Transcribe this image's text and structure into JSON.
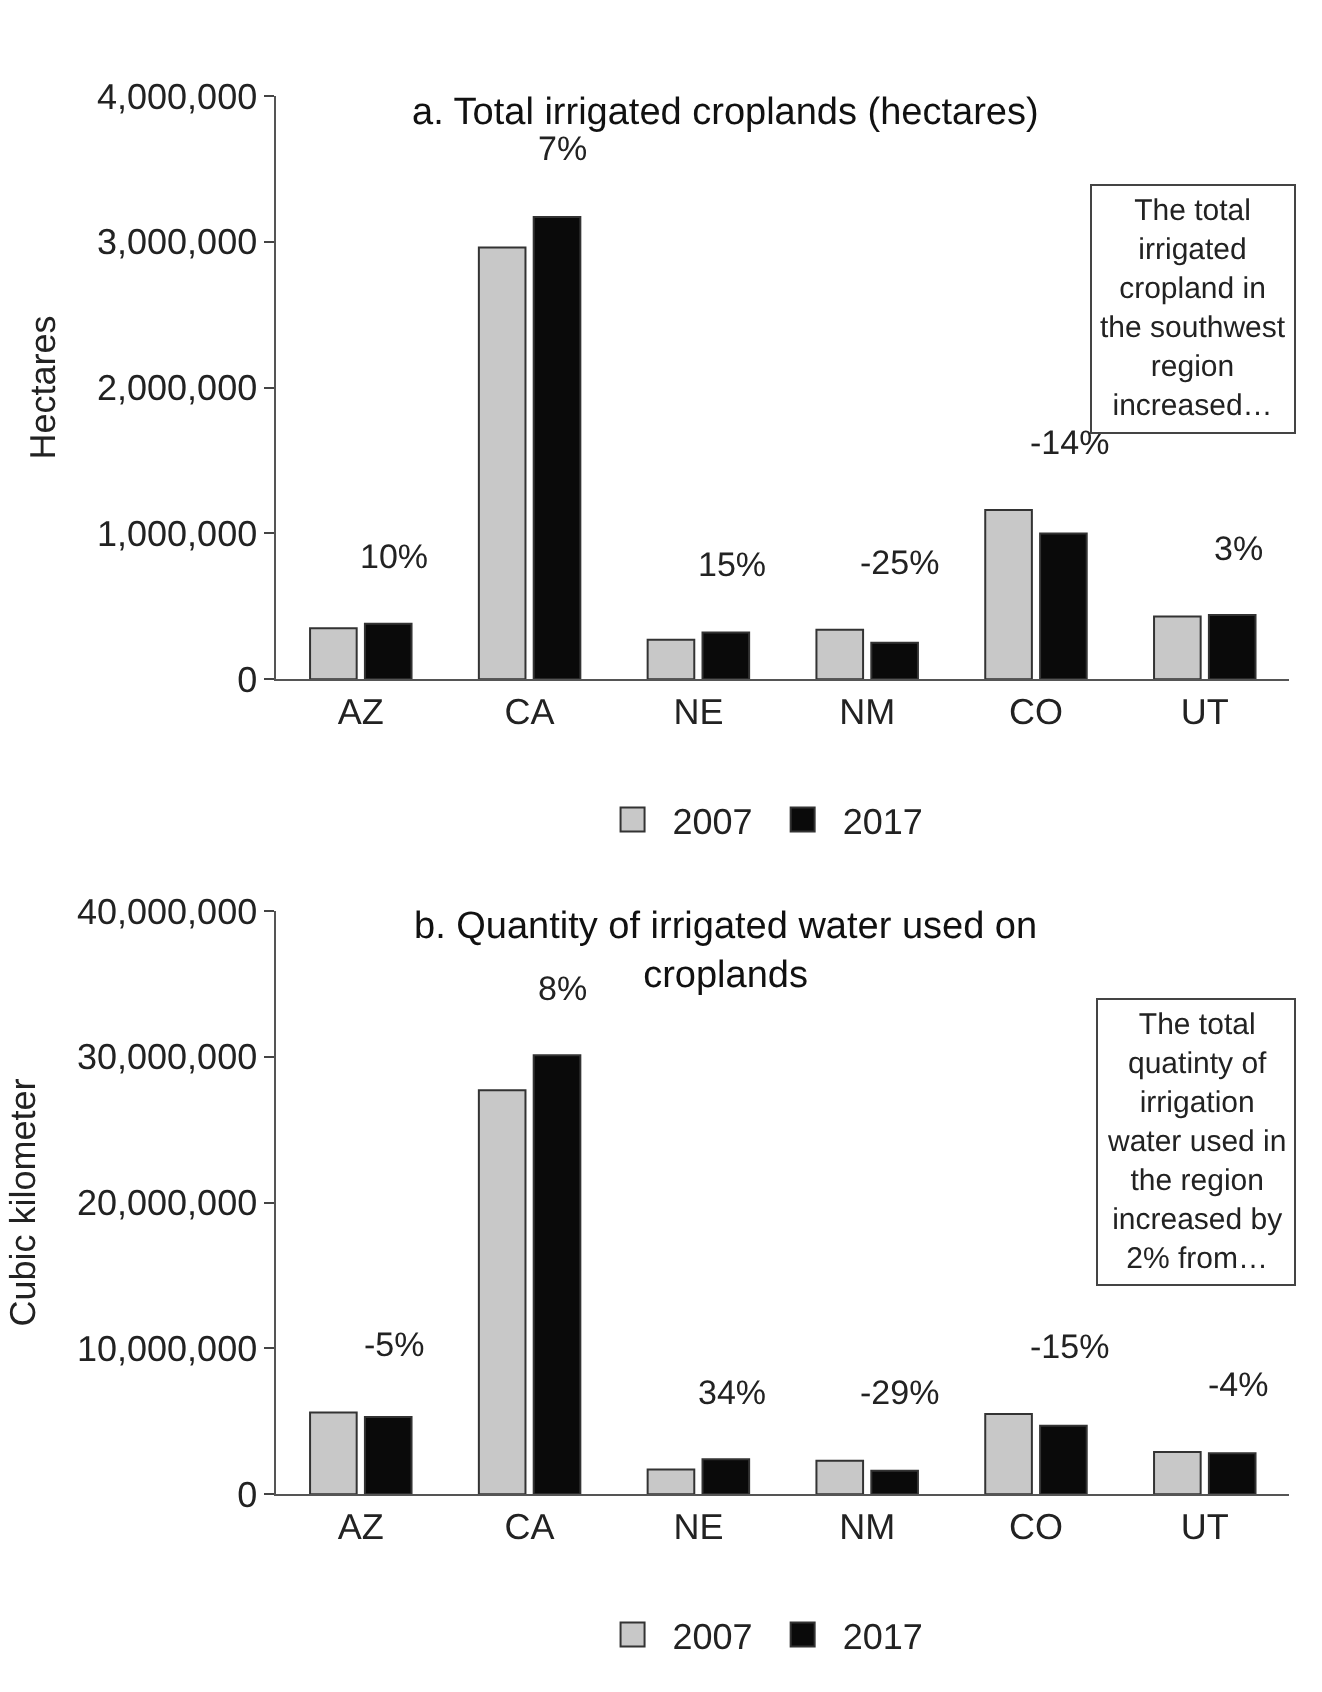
{
  "chart_data": [
    {
      "type": "bar",
      "title": "a. Total irrigated croplands (hectares)",
      "ylabel": "Hectares",
      "categories": [
        "AZ",
        "CA",
        "NE",
        "NM",
        "CO",
        "UT"
      ],
      "series": [
        {
          "name": "2007",
          "color": "#c8c8c8",
          "values": [
            350000,
            2960000,
            270000,
            340000,
            1160000,
            430000
          ]
        },
        {
          "name": "2017",
          "color": "#0a0a0a",
          "values": [
            380000,
            3170000,
            320000,
            250000,
            1000000,
            440000
          ]
        }
      ],
      "ylim": [
        0,
        4000000
      ],
      "yticks": [
        {
          "value": 0,
          "label": "0"
        },
        {
          "value": 1000000,
          "label": "1,000,000"
        },
        {
          "value": 2000000,
          "label": "2,000,000"
        },
        {
          "value": 3000000,
          "label": "3,000,000"
        },
        {
          "value": 4000000,
          "label": "4,000,000"
        }
      ],
      "annotations": [
        "10%",
        "7%",
        "15%",
        "-25%",
        "-14%",
        "3%",
        "The total irrigated cropland in the southwest region increased…"
      ],
      "legend": "bottom"
    },
    {
      "type": "bar",
      "title": "b. Quantity of irrigated water used on croplands",
      "ylabel": "Cubic kilometer",
      "categories": [
        "AZ",
        "CA",
        "NE",
        "NM",
        "CO",
        "UT"
      ],
      "series": [
        {
          "name": "2007",
          "color": "#c8c8c8",
          "values": [
            5600000,
            27700000,
            1700000,
            2300000,
            5500000,
            2900000
          ]
        },
        {
          "name": "2017",
          "color": "#0a0a0a",
          "values": [
            5300000,
            30100000,
            2400000,
            1600000,
            4700000,
            2800000
          ]
        }
      ],
      "ylim": [
        0,
        40000000
      ],
      "yticks": [
        {
          "value": 0,
          "label": "0"
        },
        {
          "value": 10000000,
          "label": "10,000,000"
        },
        {
          "value": 20000000,
          "label": "20,000,000"
        },
        {
          "value": 30000000,
          "label": "30,000,000"
        },
        {
          "value": 40000000,
          "label": "40,000,000"
        }
      ],
      "annotations": [
        "-5%",
        "8%",
        "34%",
        "-29%",
        "-15%",
        "-4%",
        "The total quatinty of irrigation water used in the region increased by 2% from…"
      ],
      "legend": "bottom"
    }
  ]
}
